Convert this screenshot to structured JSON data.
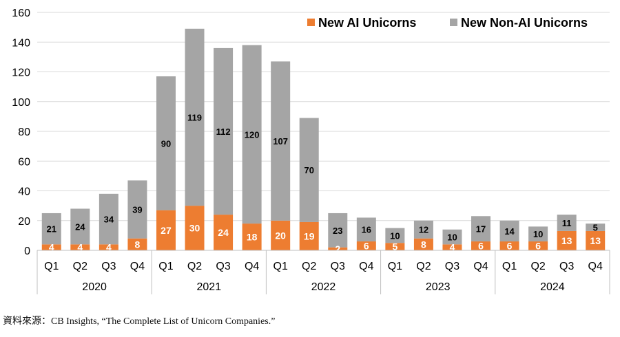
{
  "chart_data": {
    "type": "bar",
    "stacked": true,
    "years": [
      "2020",
      "2021",
      "2022",
      "2023",
      "2024"
    ],
    "quarters": [
      "Q1",
      "Q2",
      "Q3",
      "Q4"
    ],
    "categories": [
      "Q1",
      "Q2",
      "Q3",
      "Q4",
      "Q1",
      "Q2",
      "Q3",
      "Q4",
      "Q1",
      "Q2",
      "Q3",
      "Q4",
      "Q1",
      "Q2",
      "Q3",
      "Q4",
      "Q1",
      "Q2",
      "Q3",
      "Q4"
    ],
    "series": [
      {
        "name": "New AI Unicorns",
        "color": "#ED7D31",
        "values": [
          4,
          4,
          4,
          8,
          27,
          30,
          24,
          18,
          20,
          19,
          2,
          6,
          5,
          8,
          4,
          6,
          6,
          6,
          13,
          13
        ]
      },
      {
        "name": "New Non-AI Unicorns",
        "color": "#A5A5A5",
        "values": [
          21,
          24,
          34,
          39,
          90,
          119,
          112,
          120,
          107,
          70,
          23,
          16,
          10,
          12,
          10,
          17,
          14,
          10,
          11,
          5
        ]
      }
    ],
    "ylim": [
      0,
      160
    ],
    "yticks": [
      "0",
      "20",
      "40",
      "60",
      "80",
      "100",
      "120",
      "140",
      "160"
    ],
    "grid": true,
    "legend_position": "top-right"
  },
  "source_note": "資料來源：CB Insights, “The Complete List of Unicorn Companies.”"
}
